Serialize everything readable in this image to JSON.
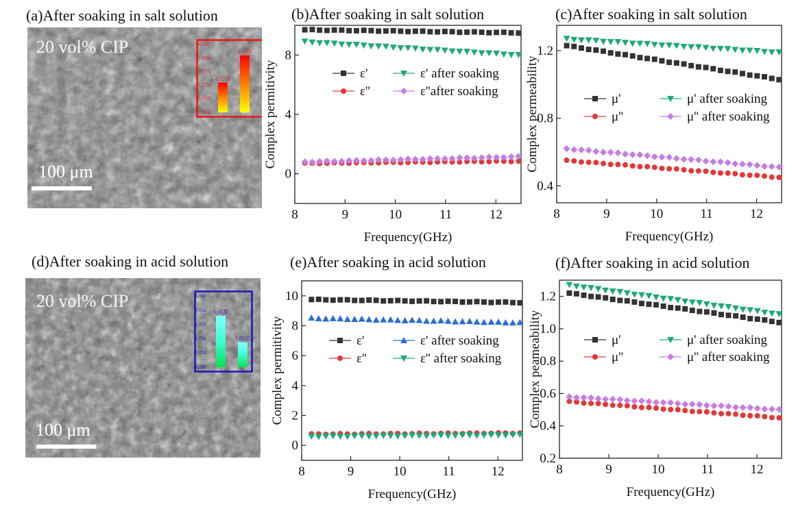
{
  "panels": {
    "a": {
      "title": "(a)After soaking in salt solution",
      "label": "20 vol% CIP",
      "scale": "100 μm"
    },
    "d": {
      "title": "(d)After soaking in acid solution",
      "label": "20 vol% CIP",
      "scale": "100 μm"
    }
  },
  "colors": {
    "black": "#333333",
    "red": "#e23838",
    "green": "#1fa97a",
    "violet": "#c57de6",
    "blue": "#2a6dd6",
    "box_red": "#e81818",
    "box_blue": "#1818b8"
  },
  "chart_data": [
    {
      "id": "inset-a",
      "type": "bar",
      "title": "",
      "ylabel": "Weight(g)",
      "categories": [
        "1",
        "2"
      ],
      "values": [
        1.1271,
        1.1281
      ],
      "value_labels": [
        "1.1271",
        "1.1281"
      ],
      "yticks": [
        "1.1260",
        "1.1265",
        "1.1270",
        "1.1275",
        "1.1280",
        "1.1285"
      ],
      "ylim": [
        1.126,
        1.1285
      ]
    },
    {
      "id": "inset-d",
      "type": "bar",
      "title": "",
      "ylabel": "Weight(g)",
      "categories": [
        "1",
        "2"
      ],
      "values": [
        1.0572,
        1.0535
      ],
      "value_labels": [
        "1.0572",
        "1.0535"
      ],
      "yticks": [
        "1.050",
        "1.052",
        "1.054",
        "1.056",
        "1.058",
        "1.060"
      ],
      "ylim": [
        1.05,
        1.06
      ]
    },
    {
      "id": "b",
      "type": "line",
      "title": "(b)After soaking in salt solution",
      "xlabel": "Frequency(GHz)",
      "ylabel": "Complex permitivity",
      "xlim": [
        8,
        12.5
      ],
      "ylim": [
        -2,
        10
      ],
      "xticks": [
        8,
        9,
        10,
        11,
        12
      ],
      "yticks": [
        0,
        4,
        8
      ],
      "series": [
        {
          "name": "ε'",
          "marker": "square",
          "color": "#333333",
          "y0": 9.7,
          "y1": 9.5
        },
        {
          "name": "ε'' ",
          "marker": "circle",
          "color": "#e23838",
          "y0": 0.7,
          "y1": 0.85
        },
        {
          "name": "ε' after soaking",
          "marker": "tri-down",
          "color": "#1fa97a",
          "y0": 8.9,
          "y1": 8.0
        },
        {
          "name": "ε''after soaking",
          "marker": "diamond",
          "color": "#c57de6",
          "y0": 0.8,
          "y1": 1.15
        }
      ],
      "legend": [
        "ε'",
        "ε' after soaking",
        "ε''",
        "ε''after soaking"
      ]
    },
    {
      "id": "c",
      "type": "line",
      "title": "(c)After soaking in salt solution",
      "xlabel": "Frequency(GHz)",
      "ylabel": "Complex permeability",
      "xlim": [
        8,
        12.5
      ],
      "ylim": [
        0.3,
        1.35
      ],
      "xticks": [
        8,
        9,
        10,
        11,
        12
      ],
      "yticks": [
        0.4,
        0.8,
        1.2
      ],
      "series": [
        {
          "name": "μ'",
          "marker": "square",
          "color": "#333333",
          "y0": 1.23,
          "y1": 1.03
        },
        {
          "name": "μ''",
          "marker": "circle",
          "color": "#e23838",
          "y0": 0.55,
          "y1": 0.45
        },
        {
          "name": "μ' after soaking",
          "marker": "tri-down",
          "color": "#1fa97a",
          "y0": 1.27,
          "y1": 1.19
        },
        {
          "name": "μ'' after soaking",
          "marker": "diamond",
          "color": "#c57de6",
          "y0": 0.62,
          "y1": 0.51
        }
      ],
      "legend": [
        "μ'",
        "μ' after soaking",
        "μ''",
        "μ'' after soaking"
      ]
    },
    {
      "id": "e",
      "type": "line",
      "title": "(e)After soaking in acid solution",
      "xlabel": "Frequency(GHz)",
      "ylabel": "Complex permitivity",
      "xlim": [
        8,
        12.5
      ],
      "ylim": [
        -1,
        11
      ],
      "xticks": [
        8,
        9,
        10,
        11,
        12
      ],
      "yticks": [
        0,
        2,
        4,
        6,
        8,
        10
      ],
      "series": [
        {
          "name": "ε'",
          "marker": "square",
          "color": "#333333",
          "y0": 9.75,
          "y1": 9.55
        },
        {
          "name": "ε''",
          "marker": "circle",
          "color": "#e23838",
          "y0": 0.75,
          "y1": 0.82
        },
        {
          "name": "ε' after soaking",
          "marker": "tri-up",
          "color": "#2a6dd6",
          "y0": 8.5,
          "y1": 8.2
        },
        {
          "name": "ε'' after soaking",
          "marker": "tri-down",
          "color": "#1fa97a",
          "y0": 0.6,
          "y1": 0.7
        }
      ],
      "legend": [
        "ε'",
        "ε' after soaking",
        "ε''",
        "ε'' after soaking"
      ]
    },
    {
      "id": "f",
      "type": "line",
      "title": "(f)After soaking in acid solution",
      "xlabel": "Frequency(GHz)",
      "ylabel": "Complex peameability",
      "xlim": [
        8,
        12.5
      ],
      "ylim": [
        0.2,
        1.3
      ],
      "xticks": [
        8,
        9,
        10,
        11,
        12
      ],
      "yticks": [
        0.2,
        0.4,
        0.6,
        0.8,
        1.0,
        1.2
      ],
      "series": [
        {
          "name": "μ'",
          "marker": "square",
          "color": "#333333",
          "y0": 1.22,
          "y1": 1.04
        },
        {
          "name": "μ''",
          "marker": "circle",
          "color": "#e23838",
          "y0": 0.55,
          "y1": 0.45
        },
        {
          "name": "μ' after soaking",
          "marker": "tri-down",
          "color": "#1fa97a",
          "y0": 1.27,
          "y1": 1.09
        },
        {
          "name": "μ'' after soaking",
          "marker": "diamond",
          "color": "#c57de6",
          "y0": 0.58,
          "y1": 0.5
        }
      ],
      "legend": [
        "μ'",
        "μ' after soaking",
        "μ''",
        "μ'' after soaking"
      ]
    }
  ]
}
